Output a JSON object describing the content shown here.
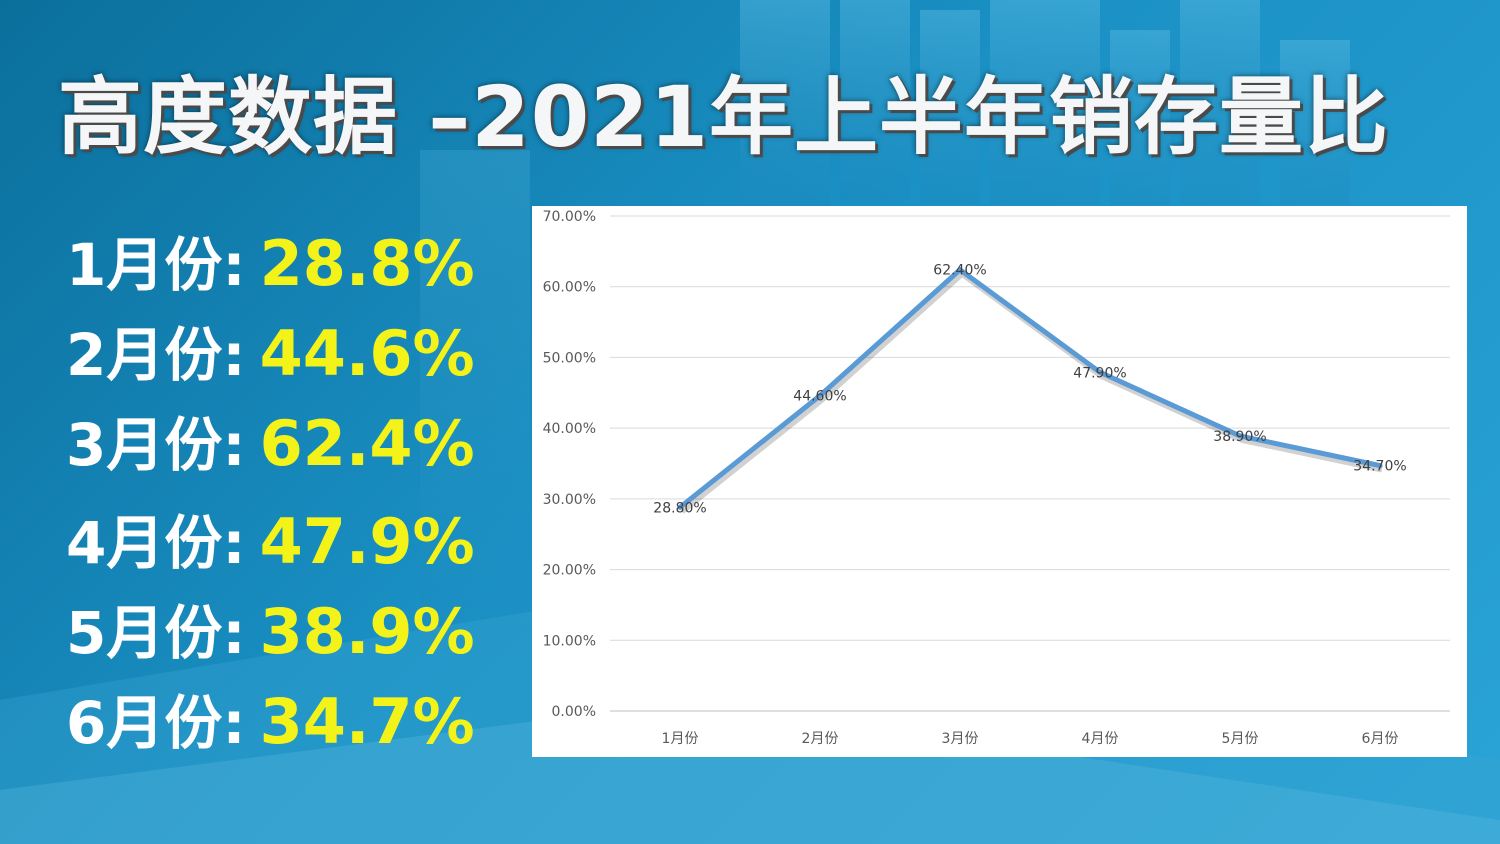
{
  "title": "高度数据 –2021年上半年销存量比",
  "stats": [
    {
      "label": "1月份:",
      "value": "28.8%"
    },
    {
      "label": "2月份:",
      "value": "44.6%"
    },
    {
      "label": "3月份:",
      "value": "62.4%"
    },
    {
      "label": "4月份:",
      "value": "47.9%"
    },
    {
      "label": "5月份:",
      "value": "38.9%"
    },
    {
      "label": "6月份:",
      "value": "34.7%"
    }
  ],
  "colors": {
    "background": "#1a90c4",
    "value_text": "#f3f31a",
    "line": "#5b9bd5"
  },
  "chart_data": {
    "type": "line",
    "title": "",
    "xlabel": "",
    "ylabel": "",
    "categories": [
      "1月份",
      "2月份",
      "3月份",
      "4月份",
      "5月份",
      "6月份"
    ],
    "series": [
      {
        "values": [
          0.288,
          0.446,
          0.624,
          0.479,
          0.389,
          0.347
        ],
        "data_labels": [
          "28.80%",
          "44.60%",
          "62.40%",
          "47.90%",
          "38.90%",
          "34.70%"
        ]
      }
    ],
    "ylim": [
      0,
      0.7
    ],
    "yticks": [
      0,
      0.1,
      0.2,
      0.3,
      0.4,
      0.5,
      0.6,
      0.7
    ],
    "ytick_labels": [
      "0.00%",
      "10.00%",
      "20.00%",
      "30.00%",
      "40.00%",
      "50.00%",
      "60.00%",
      "70.00%"
    ],
    "grid": true,
    "legend": "none"
  }
}
